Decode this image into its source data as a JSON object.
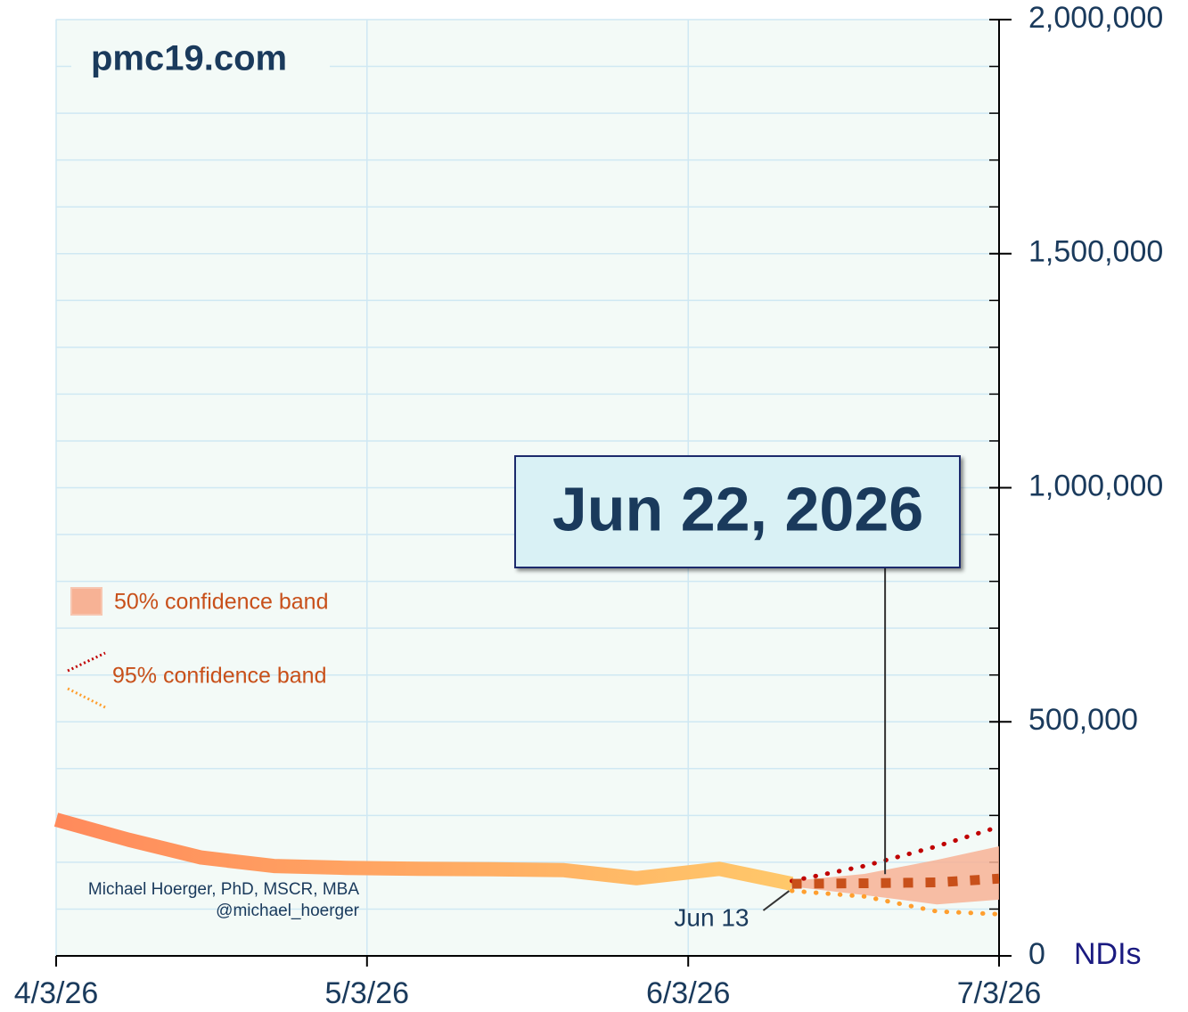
{
  "chart_data": {
    "type": "line",
    "title": "pmc19.com",
    "credits": [
      "Michael Hoerger, PhD, MSCR, MBA",
      "@michael_hoerger"
    ],
    "y_unit_label": "NDIs",
    "x": [
      "2026-04-03",
      "2026-04-10",
      "2026-04-17",
      "2026-04-24",
      "2026-05-01",
      "2026-05-08",
      "2026-05-15",
      "2026-05-22",
      "2026-05-29",
      "2026-06-06",
      "2026-06-13"
    ],
    "values": [
      291000,
      248000,
      210000,
      192000,
      188000,
      186000,
      185000,
      183000,
      166000,
      186000,
      154000
    ],
    "color": [
      "#ff8a5c",
      "#ffc86a"
    ],
    "forecast": {
      "x": [
        "2026-06-13",
        "2026-06-20",
        "2026-06-27",
        "2026-07-03"
      ],
      "median": [
        154000,
        155000,
        157000,
        165000
      ],
      "median_color": "#c8501a",
      "band50": {
        "name": "50% confidence band",
        "upper": [
          160000,
          175000,
          205000,
          234000
        ],
        "lower": [
          148000,
          130000,
          110000,
          120000
        ],
        "color": "#f7b295"
      },
      "band95": {
        "name": "95% confidence band",
        "upper": [
          160000,
          192000,
          234000,
          276000
        ],
        "lower": [
          139000,
          127000,
          95000,
          89000
        ],
        "colors": [
          "#c00000",
          "#ff9f2f"
        ]
      }
    },
    "annotations": [
      {
        "text": "Jun 22, 2026",
        "x": "2026-06-22"
      },
      {
        "text": "Jun 13",
        "x": "2026-06-13"
      }
    ],
    "xlim": [
      "2026-04-03",
      "2026-07-03"
    ],
    "xticks": [
      {
        "value": "2026-04-03",
        "label": "4/3/26"
      },
      {
        "value": "2026-05-03",
        "label": "5/3/26"
      },
      {
        "value": "2026-06-03",
        "label": "6/3/26"
      },
      {
        "value": "2026-07-03",
        "label": "7/3/26"
      }
    ],
    "ylim": [
      0,
      2000000
    ],
    "yticks": [
      0,
      {
        "value": 500000,
        "label": "500,000"
      },
      {
        "value": 1000000,
        "label": "1,000,000"
      },
      {
        "value": 1500000,
        "label": "1,500,000"
      },
      {
        "value": 2000000,
        "label": "2,000,000"
      }
    ],
    "yminorticks": [
      100000,
      200000,
      300000,
      400000,
      600000,
      700000,
      800000,
      900000,
      1100000,
      1200000,
      1300000,
      1400000,
      1600000,
      1700000,
      1800000,
      1900000
    ],
    "grid": true
  }
}
